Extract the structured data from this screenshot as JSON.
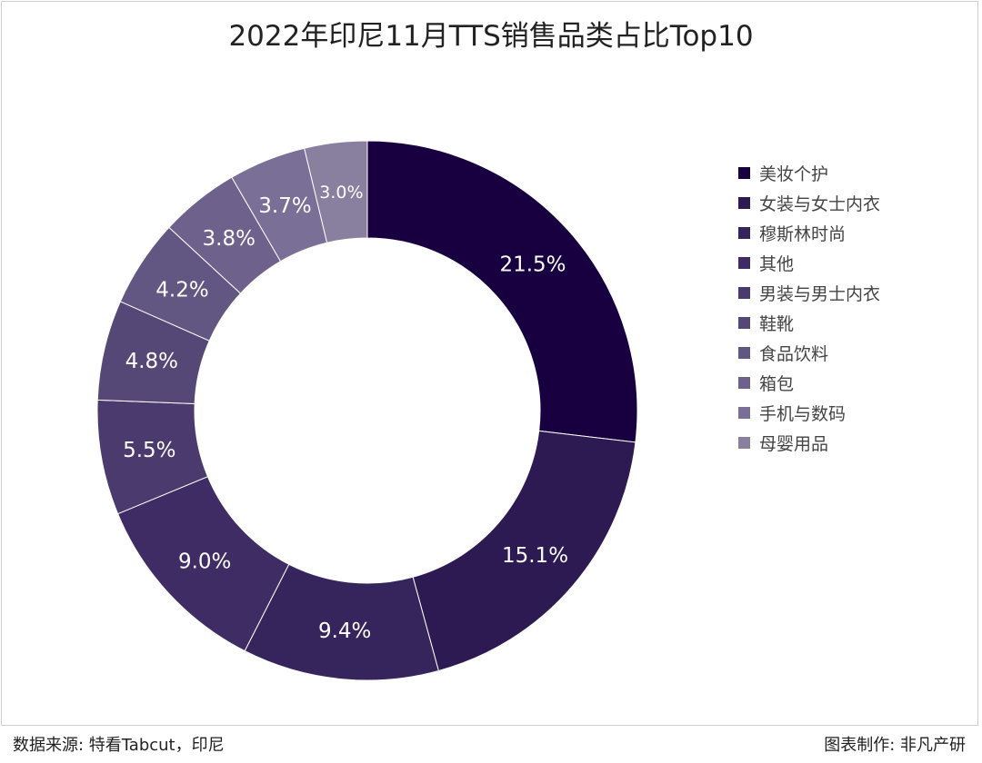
{
  "chart_data": {
    "type": "pie",
    "style": "donut",
    "title": "2022年印尼11月TTS销售品类占比Top10",
    "categories": [
      "美妆个护",
      "女装与女士内衣",
      "穆斯林时尚",
      "其他",
      "男装与男士内衣",
      "鞋靴",
      "食品饮料",
      "箱包",
      "手机与数码",
      "母婴用品"
    ],
    "values": [
      21.5,
      15.1,
      9.4,
      9.0,
      5.5,
      4.8,
      4.2,
      3.8,
      3.7,
      3.0
    ],
    "data_labels": [
      "21.5%",
      "15.1%",
      "9.4%",
      "9.0%",
      "5.5%",
      "4.8%",
      "4.2%",
      "3.8%",
      "3.7%",
      "3.0%"
    ],
    "colors": [
      "#180040",
      "#2e1a52",
      "#36245c",
      "#3f2c64",
      "#4a3a6e",
      "#554877",
      "#625683",
      "#6e628c",
      "#7a6f96",
      "#897f9f"
    ],
    "legend_position": "right"
  },
  "footer": {
    "source": "数据来源: 特看Tabcut，印尼",
    "credit": "图表制作: 非凡产研"
  }
}
